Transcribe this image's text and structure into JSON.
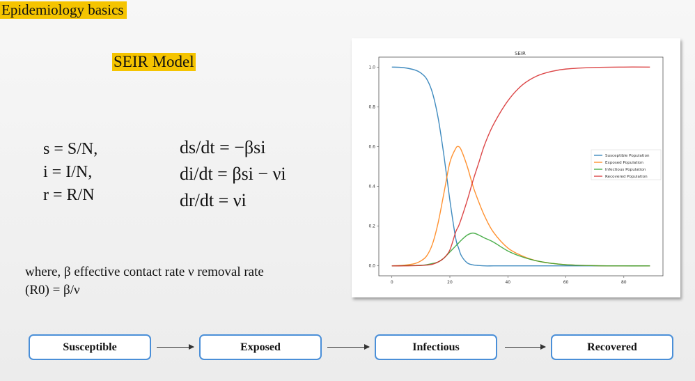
{
  "slide": {
    "title": "Epidemiology basics",
    "subtitle": "SEIR Model",
    "definitions": [
      "s = S/N,",
      "i = I/N,",
      "r = R/N"
    ],
    "equations": [
      "ds/dt = −βsi",
      "di/dt = βsi − νi",
      "dr/dt = νi"
    ],
    "where_line1": "where, β effective contact rate ν removal rate",
    "where_line2": "(R0) = β/ν",
    "flow": [
      "Susceptible",
      "Exposed",
      "Infectious",
      "Recovered"
    ],
    "colors": {
      "highlight": "#f5c400",
      "box_border": "#4a8fd8"
    }
  },
  "chart_data": {
    "type": "line",
    "title": "SEIR",
    "xlabel": "",
    "ylabel": "",
    "xlim": [
      -4.5,
      93.5
    ],
    "ylim": [
      -0.05,
      1.05
    ],
    "xticks": [
      0,
      20,
      40,
      60,
      80
    ],
    "yticks": [
      0.0,
      0.2,
      0.4,
      0.6,
      0.8,
      1.0
    ],
    "grid": false,
    "legend": "center-right",
    "x": [
      0,
      4,
      8,
      10,
      12,
      14,
      16,
      18,
      20,
      22,
      23,
      24,
      26,
      28,
      30,
      32,
      35,
      40,
      45,
      50,
      55,
      60,
      70,
      80,
      89
    ],
    "series": [
      {
        "name": "Susceptible Population",
        "color": "#1f77b4",
        "values": [
          1,
          0.997,
          0.985,
          0.97,
          0.94,
          0.87,
          0.74,
          0.55,
          0.33,
          0.14,
          0.09,
          0.05,
          0.015,
          0.005,
          0.002,
          0,
          0,
          0,
          0,
          0,
          0,
          0,
          0,
          0,
          0
        ]
      },
      {
        "name": "Exposed Population",
        "color": "#ff7f0e",
        "values": [
          0,
          0.003,
          0.012,
          0.025,
          0.05,
          0.11,
          0.22,
          0.37,
          0.52,
          0.59,
          0.6,
          0.58,
          0.5,
          0.4,
          0.32,
          0.25,
          0.17,
          0.09,
          0.05,
          0.025,
          0.013,
          0.006,
          0.001,
          0,
          0
        ]
      },
      {
        "name": "Infectious Population",
        "color": "#2ca02c",
        "values": [
          0,
          0.001,
          0.002,
          0.003,
          0.006,
          0.012,
          0.02,
          0.04,
          0.07,
          0.1,
          0.115,
          0.13,
          0.155,
          0.165,
          0.155,
          0.14,
          0.12,
          0.075,
          0.045,
          0.025,
          0.013,
          0.006,
          0.001,
          0,
          0
        ]
      },
      {
        "name": "Recovered Population",
        "color": "#d62728",
        "values": [
          0,
          0,
          0.001,
          0.002,
          0.004,
          0.008,
          0.02,
          0.04,
          0.08,
          0.17,
          0.2,
          0.24,
          0.33,
          0.43,
          0.52,
          0.61,
          0.71,
          0.83,
          0.91,
          0.955,
          0.978,
          0.99,
          0.998,
          1,
          1
        ]
      }
    ]
  }
}
